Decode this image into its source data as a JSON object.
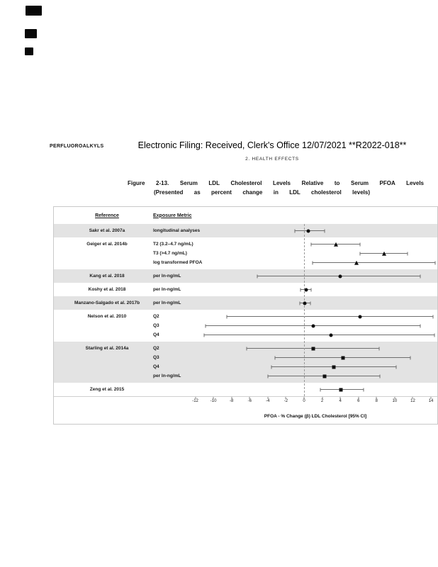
{
  "page": {
    "running_head": "PERFLUOROALKYLS",
    "stamp_title": "Electronic Filing: Received, Clerk's Office 12/07/2021 **R2022-018**",
    "section_header": "2. HEALTH EFFECTS",
    "figure_caption_line1": "Figure 2-13. Serum LDL Cholesterol Levels Relative to Serum PFOA Levels",
    "figure_caption_line2": "(Presented as percent change in LDL cholesterol levels)"
  },
  "figure": {
    "col_reference": "Reference",
    "col_exposure": "Exposure Metric",
    "xlabel": "PFOA - % Change (β) LDL Cholesterol [95% CI]"
  },
  "chart_data": {
    "type": "scatter",
    "subtype": "forest-plot",
    "xlabel": "PFOA - % Change (β) LDL Cholesterol [95% CI]",
    "xlim": [
      -12.2,
      14.7
    ],
    "xticks": [
      -12,
      -10,
      -8,
      -6,
      -4,
      -2,
      0,
      2,
      4,
      6,
      8,
      10,
      12,
      14
    ],
    "reference_line_x": 0,
    "marker_color": "#101010",
    "ci_color": "#6e6e6e",
    "band_color": "#e3e3e3",
    "legend_position": "none",
    "grid": false,
    "groups": [
      {
        "reference": "Sakr et al. 2007a",
        "shaded": true,
        "rows": [
          {
            "metric": "longitudinal analyses",
            "marker": "circle",
            "estimate": 0.5,
            "ci": [
              -1.0,
              2.3
            ]
          }
        ]
      },
      {
        "reference": "Geiger et al. 2014b",
        "shaded": false,
        "rows": [
          {
            "metric": "T2 (3.2–4.7 ng/mL)",
            "marker": "triangle",
            "estimate": 3.5,
            "ci": [
              0.8,
              6.2
            ]
          },
          {
            "metric": "T3 (>4.7 ng/mL)",
            "marker": "triangle",
            "estimate": 8.8,
            "ci": [
              6.2,
              11.4
            ]
          },
          {
            "metric": "log transformed PFOA",
            "marker": "triangle",
            "estimate": 5.8,
            "ci": [
              0.9,
              14.5
            ]
          }
        ]
      },
      {
        "reference": "Kang et al. 2018",
        "shaded": true,
        "rows": [
          {
            "metric": "per ln-ng/mL",
            "marker": "circle",
            "estimate": 4.0,
            "ci": [
              -5.2,
              12.8
            ]
          }
        ]
      },
      {
        "reference": "Koshy et al. 2018",
        "shaded": false,
        "rows": [
          {
            "metric": "per ln-ng/mL",
            "marker": "circle",
            "estimate": 0.2,
            "ci": [
              -0.4,
              0.8
            ]
          }
        ]
      },
      {
        "reference": "Manzano-Salgado et al. 2017b",
        "shaded": true,
        "rows": [
          {
            "metric": "per ln-ng/mL",
            "marker": "circle",
            "estimate": 0.1,
            "ci": [
              -0.5,
              0.7
            ]
          }
        ]
      },
      {
        "reference": "Nelson et al. 2010",
        "shaded": false,
        "rows": [
          {
            "metric": "Q2",
            "marker": "circle",
            "estimate": 6.2,
            "ci": [
              -8.5,
              14.2
            ]
          },
          {
            "metric": "Q3",
            "marker": "circle",
            "estimate": 1.0,
            "ci": [
              -10.9,
              12.8
            ]
          },
          {
            "metric": "Q4",
            "marker": "circle",
            "estimate": 3.0,
            "ci": [
              -11.0,
              14.4
            ]
          }
        ]
      },
      {
        "reference": "Starling et al. 2014a",
        "shaded": true,
        "rows": [
          {
            "metric": "Q2",
            "marker": "square",
            "estimate": 1.0,
            "ci": [
              -6.3,
              8.3
            ]
          },
          {
            "metric": "Q3",
            "marker": "square",
            "estimate": 4.3,
            "ci": [
              -3.2,
              11.7
            ]
          },
          {
            "metric": "Q4",
            "marker": "square",
            "estimate": 3.3,
            "ci": [
              -3.6,
              10.2
            ]
          },
          {
            "metric": "per ln-ng/mL",
            "marker": "square",
            "estimate": 2.3,
            "ci": [
              -4.0,
              8.4
            ]
          }
        ]
      },
      {
        "reference": "Zeng et al. 2015",
        "shaded": false,
        "rows": [
          {
            "metric": "",
            "marker": "square",
            "estimate": 4.1,
            "ci": [
              1.8,
              6.6
            ]
          }
        ]
      }
    ]
  }
}
